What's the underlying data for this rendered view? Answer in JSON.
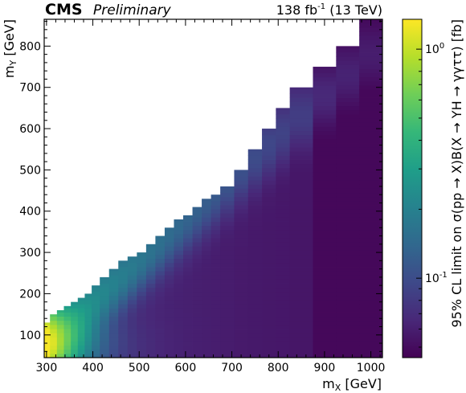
{
  "chart_data": {
    "type": "heatmap",
    "header_left_bold": "CMS",
    "header_left_italic": "Preliminary",
    "header_right": {
      "lumi": "138 fb",
      "lumi_exp": "-1",
      "energy": "(13 TeV)"
    },
    "xlabel": {
      "main": "m",
      "sub": "X",
      "unit": "[GeV]"
    },
    "ylabel": {
      "main": "m",
      "sub": "Y",
      "unit": "[GeV]"
    },
    "colorbar_label": "95% CL limit on σ(pp → X)B(X → YH → γγττ) [fb]",
    "xlim": [
      295,
      1025
    ],
    "ylim": [
      45,
      865
    ],
    "xticks": [
      300,
      400,
      500,
      600,
      700,
      800,
      900,
      1000
    ],
    "yticks": [
      100,
      200,
      300,
      400,
      500,
      600,
      700,
      800
    ],
    "colorbar": {
      "scale": "log",
      "zlim": [
        0.045,
        1.35
      ],
      "ticks": [
        {
          "value": 0.1,
          "label": "10",
          "exp": "-1"
        },
        {
          "value": 1.0,
          "label": "10",
          "exp": "0"
        }
      ],
      "colormap": "viridis"
    },
    "x_bin_edges": [
      295,
      307.5,
      322.5,
      337.5,
      352.5,
      367.5,
      382.5,
      397.5,
      415,
      435,
      455,
      475,
      495,
      515,
      535,
      555,
      575,
      595,
      615,
      635,
      655,
      675,
      705,
      735,
      765,
      795,
      825,
      875,
      925,
      975,
      1025
    ],
    "row_height": 10,
    "column_y_max": [
      130,
      150,
      160,
      170,
      180,
      190,
      200,
      220,
      240,
      260,
      280,
      290,
      300,
      320,
      340,
      360,
      380,
      390,
      410,
      430,
      440,
      460,
      500,
      550,
      600,
      650,
      700,
      750,
      800,
      865
    ],
    "z_model": {
      "description": "limit shown by colour",
      "peak": 1.3,
      "floor": 0.05
    },
    "colors": {
      "viridis": [
        "#440154",
        "#482878",
        "#3e4989",
        "#31688e",
        "#26828e",
        "#1f9e89",
        "#35b779",
        "#6ece58",
        "#b5de2b",
        "#fde725"
      ]
    }
  }
}
